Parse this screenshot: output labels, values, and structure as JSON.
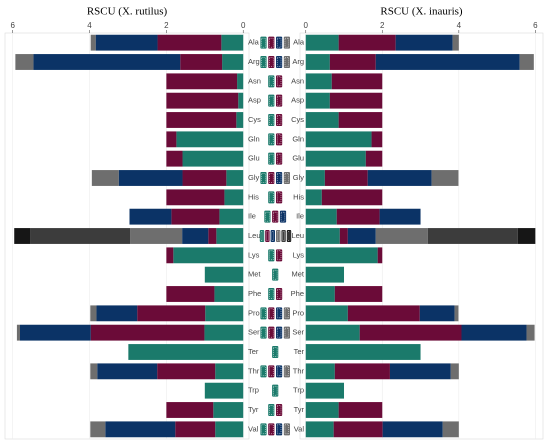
{
  "chart_data": [
    {
      "type": "stacked-bar",
      "orientation": "horizontal",
      "title": "RSCU (X. rutilus)",
      "categories": [
        "Ala",
        "Arg",
        "Asn",
        "Asp",
        "Cys",
        "Gln",
        "Glu",
        "Gly",
        "His",
        "Ile",
        "Leu",
        "Lys",
        "Met",
        "Phe",
        "Pro",
        "Ser",
        "Ter",
        "Thr",
        "Trp",
        "Tyr",
        "Val"
      ],
      "xlim": [
        6.2,
        -0.15
      ],
      "xticks": [
        6,
        4,
        2,
        0
      ],
      "grid": true,
      "series": [
        {
          "color": "#1b7a6b",
          "values": [
            0.57,
            0.55,
            0.16,
            0.13,
            0.18,
            1.74,
            1.58,
            0.44,
            0.49,
            0.62,
            0.7,
            1.82,
            1.0,
            0.75,
            0.99,
            1.01,
            2.99,
            0.73,
            1.0,
            0.78,
            0.73
          ]
        },
        {
          "color": "#6b0b38",
          "values": [
            1.66,
            1.09,
            1.84,
            1.87,
            1.82,
            0.26,
            0.42,
            1.14,
            1.51,
            1.25,
            0.21,
            0.18,
            null,
            1.25,
            1.77,
            2.96,
            null,
            1.51,
            null,
            1.22,
            1.04
          ]
        },
        {
          "color": "#0b3366",
          "values": [
            1.61,
            3.82,
            null,
            null,
            null,
            null,
            null,
            1.66,
            null,
            1.09,
            0.68,
            null,
            null,
            null,
            1.06,
            1.84,
            null,
            1.56,
            null,
            null,
            1.82
          ]
        },
        {
          "color": "#6e6e6e",
          "values": [
            0.13,
            0.47,
            null,
            null,
            null,
            null,
            null,
            0.7,
            null,
            null,
            1.35,
            null,
            null,
            null,
            0.16,
            0.08,
            null,
            0.18,
            null,
            null,
            0.39
          ]
        },
        {
          "color": "#3c3c3c",
          "values": [
            null,
            null,
            null,
            null,
            null,
            null,
            null,
            null,
            null,
            null,
            2.6,
            null,
            null,
            null,
            null,
            null,
            null,
            null,
            null,
            null,
            null
          ]
        },
        {
          "color": "#161616",
          "values": [
            null,
            null,
            null,
            null,
            null,
            null,
            null,
            null,
            null,
            null,
            0.42,
            null,
            null,
            null,
            null,
            null,
            null,
            null,
            null,
            null,
            null
          ]
        }
      ]
    },
    {
      "type": "stacked-bar",
      "orientation": "horizontal",
      "title": "RSCU (X. inauris)",
      "categories": [
        "Ala",
        "Arg",
        "Asn",
        "Asp",
        "Cys",
        "Gln",
        "Glu",
        "Gly",
        "His",
        "Ile",
        "Leu",
        "Lys",
        "Met",
        "Phe",
        "Pro",
        "Ser",
        "Ter",
        "Thr",
        "Trp",
        "Tyr",
        "Val"
      ],
      "xlim": [
        -0.15,
        6.2
      ],
      "xticks": [
        0,
        2,
        4,
        6
      ],
      "grid": true,
      "series": [
        {
          "color": "#1b7a6b",
          "values": [
            0.86,
            0.63,
            0.68,
            0.63,
            0.86,
            1.72,
            1.57,
            0.5,
            0.42,
            0.81,
            0.89,
            1.88,
            1.0,
            0.76,
            1.1,
            1.41,
            3.0,
            0.76,
            1.0,
            0.86,
            0.73
          ]
        },
        {
          "color": "#6b0b38",
          "values": [
            1.49,
            1.2,
            1.32,
            1.37,
            1.14,
            0.28,
            0.43,
            1.12,
            1.58,
            1.12,
            0.21,
            0.12,
            null,
            1.24,
            1.88,
            2.66,
            null,
            1.44,
            null,
            1.14,
            1.28
          ]
        },
        {
          "color": "#0b3366",
          "values": [
            1.49,
            3.76,
            null,
            null,
            null,
            null,
            null,
            1.67,
            null,
            1.07,
            0.73,
            null,
            null,
            null,
            0.91,
            1.7,
            null,
            1.59,
            null,
            null,
            1.57
          ]
        },
        {
          "color": "#6e6e6e",
          "values": [
            0.16,
            0.37,
            null,
            null,
            null,
            null,
            null,
            0.7,
            null,
            null,
            1.36,
            null,
            null,
            null,
            0.1,
            0.21,
            null,
            0.21,
            null,
            null,
            0.42
          ]
        },
        {
          "color": "#3c3c3c",
          "values": [
            null,
            null,
            null,
            null,
            null,
            null,
            null,
            null,
            null,
            null,
            2.35,
            null,
            null,
            null,
            null,
            null,
            null,
            null,
            null,
            null,
            null
          ]
        },
        {
          "color": "#161616",
          "values": [
            null,
            null,
            null,
            null,
            null,
            null,
            null,
            null,
            null,
            null,
            0.46,
            null,
            null,
            null,
            null,
            null,
            null,
            null,
            null,
            null,
            null
          ]
        }
      ]
    }
  ]
}
